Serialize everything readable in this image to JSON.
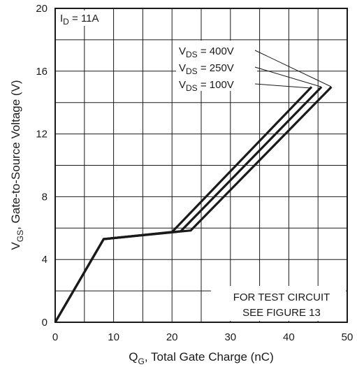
{
  "chart_data": {
    "type": "line",
    "xlabel": {
      "main": "Q",
      "sub": "G",
      "rest": ", Total Gate Charge (nC)"
    },
    "ylabel": {
      "main": "V",
      "sub": "GS",
      "rest": ", Gate-to-Source Voltage (V)"
    },
    "xlim": [
      0,
      50
    ],
    "ylim": [
      0,
      20
    ],
    "x_ticks": [
      "0",
      "10",
      "20",
      "30",
      "40",
      "50"
    ],
    "y_ticks": [
      "0",
      "4",
      "8",
      "12",
      "16",
      "20"
    ],
    "grid": true,
    "condition": {
      "main": "I",
      "sub": "D",
      "rest": " = 11A"
    },
    "note": [
      "FOR TEST CIRCUIT",
      "SEE FIGURE 13"
    ],
    "series": [
      {
        "name": "400V",
        "label": {
          "main": "V",
          "sub": "DS",
          "rest": " = 400V"
        },
        "x": [
          0,
          8.3,
          23.2,
          47.3
        ],
        "y": [
          0,
          5.3,
          5.85,
          15.0
        ]
      },
      {
        "name": "250V",
        "label": {
          "main": "V",
          "sub": "DS",
          "rest": " = 250V"
        },
        "x": [
          0,
          8.3,
          21.5,
          45.6
        ],
        "y": [
          0,
          5.3,
          5.8,
          15.0
        ]
      },
      {
        "name": "100V",
        "label": {
          "main": "V",
          "sub": "DS",
          "rest": " = 100V"
        },
        "x": [
          0,
          8.3,
          20.0,
          43.9
        ],
        "y": [
          0,
          5.3,
          5.75,
          15.0
        ]
      }
    ]
  }
}
